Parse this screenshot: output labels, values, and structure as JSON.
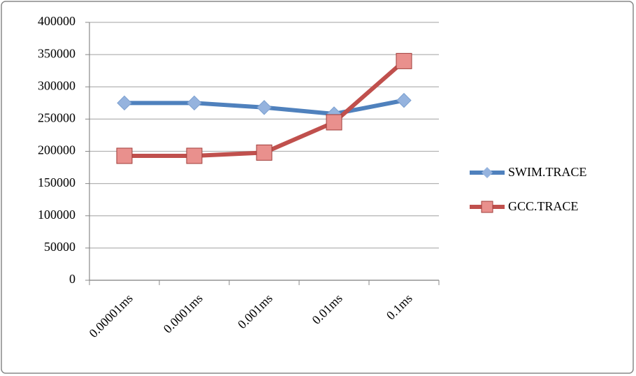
{
  "chart_data": {
    "type": "line",
    "categories": [
      "0.00001ms",
      "0.0001ms",
      "0.001ms",
      "0.01ms",
      "0.1ms"
    ],
    "series": [
      {
        "name": "SWIM.TRACE",
        "color": "#4f81bd",
        "marker": "diamond",
        "values": [
          275000,
          275000,
          268000,
          258000,
          279000
        ]
      },
      {
        "name": "GCC.TRACE",
        "color": "#c0504d",
        "marker": "square",
        "values": [
          193000,
          193000,
          198000,
          245000,
          340000
        ]
      }
    ],
    "ylim": [
      0,
      400000
    ],
    "yticks": [
      0,
      50000,
      100000,
      150000,
      200000,
      250000,
      300000,
      350000,
      400000
    ],
    "grid": true,
    "legend": "right"
  }
}
